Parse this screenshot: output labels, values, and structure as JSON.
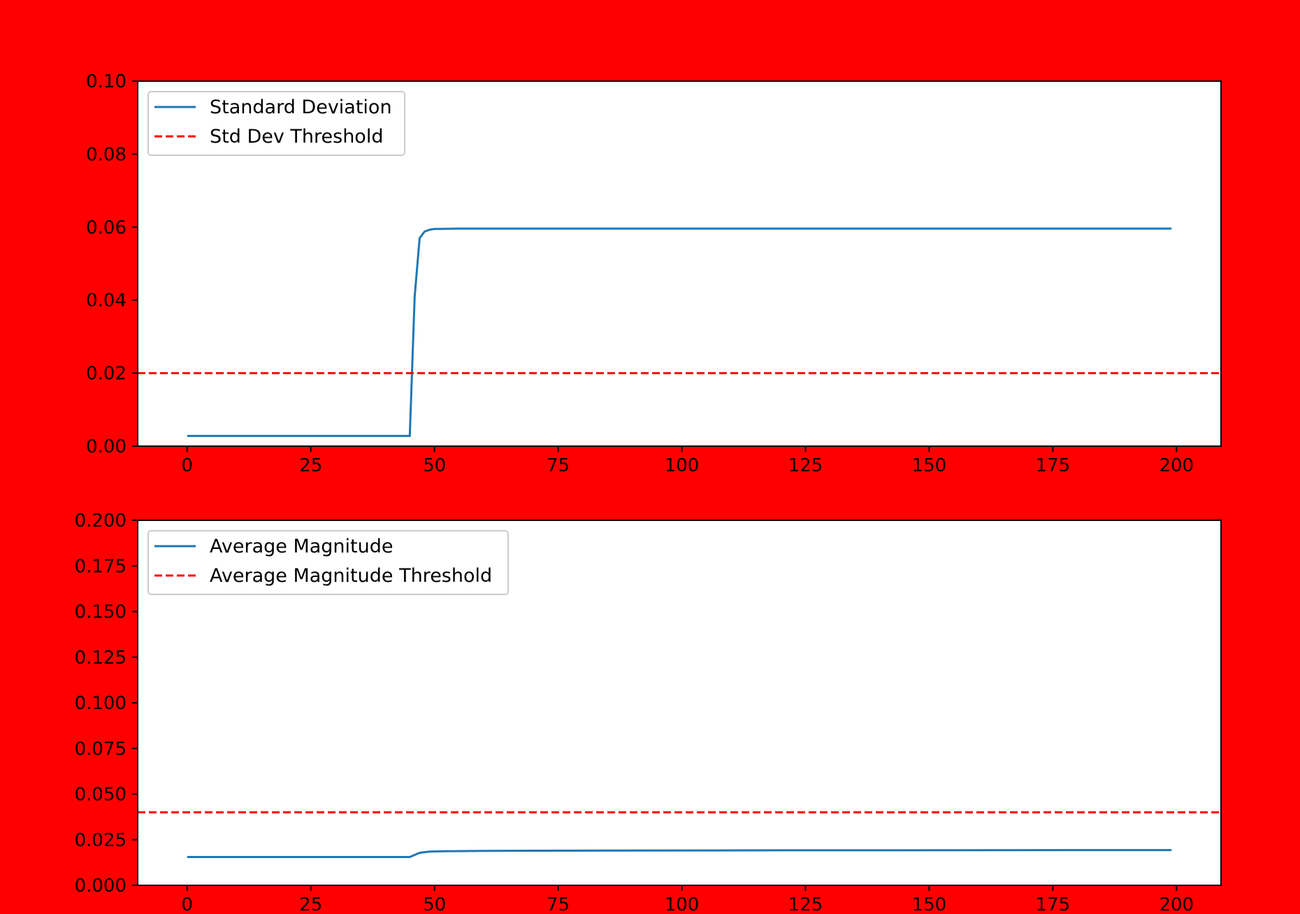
{
  "figure": {
    "background_color": "#ff0000",
    "plot_background_color": "#ffffff"
  },
  "chart_data": [
    {
      "type": "line",
      "title": "",
      "xlabel": "",
      "ylabel": "",
      "xlim": [
        -10,
        209
      ],
      "ylim": [
        0,
        0.1
      ],
      "xticks": [
        0,
        25,
        50,
        75,
        100,
        125,
        150,
        175,
        200
      ],
      "xtick_labels": [
        "0",
        "25",
        "50",
        "75",
        "100",
        "125",
        "150",
        "175",
        "200"
      ],
      "yticks": [
        0,
        0.02,
        0.04,
        0.06,
        0.08,
        0.1
      ],
      "ytick_labels": [
        "0.00",
        "0.02",
        "0.04",
        "0.06",
        "0.08",
        "0.10"
      ],
      "grid": false,
      "legend_position": "top-left",
      "series": [
        {
          "name": "Standard Deviation",
          "color": "#1f77b4",
          "style": "solid",
          "x": [
            0,
            45,
            46,
            47,
            48,
            49,
            50,
            55,
            60,
            199
          ],
          "y": [
            0.0028,
            0.0028,
            0.041,
            0.057,
            0.0588,
            0.0593,
            0.0595,
            0.0596,
            0.0596,
            0.0596
          ]
        },
        {
          "name": "Std Dev Threshold",
          "color": "#ff0000",
          "style": "dashed",
          "x": [
            -10,
            209
          ],
          "y": [
            0.02,
            0.02
          ]
        }
      ]
    },
    {
      "type": "line",
      "title": "",
      "xlabel": "",
      "ylabel": "",
      "xlim": [
        -10,
        209
      ],
      "ylim": [
        0,
        0.2
      ],
      "xticks": [
        0,
        25,
        50,
        75,
        100,
        125,
        150,
        175,
        200
      ],
      "xtick_labels": [
        "0",
        "25",
        "50",
        "75",
        "100",
        "125",
        "150",
        "175",
        "200"
      ],
      "yticks": [
        0,
        0.025,
        0.05,
        0.075,
        0.1,
        0.125,
        0.15,
        0.175,
        0.2
      ],
      "ytick_labels": [
        "0.000",
        "0.025",
        "0.050",
        "0.075",
        "0.100",
        "0.125",
        "0.150",
        "0.175",
        "0.200"
      ],
      "grid": false,
      "legend_position": "top-left",
      "series": [
        {
          "name": "Average Magnitude",
          "color": "#1f77b4",
          "style": "solid",
          "x": [
            0,
            45,
            47,
            49,
            52,
            60,
            80,
            120,
            199
          ],
          "y": [
            0.0155,
            0.0155,
            0.0178,
            0.0185,
            0.0187,
            0.0189,
            0.019,
            0.0192,
            0.0193
          ]
        },
        {
          "name": "Average Magnitude Threshold",
          "color": "#ff0000",
          "style": "dashed",
          "x": [
            -10,
            209
          ],
          "y": [
            0.04,
            0.04
          ]
        }
      ]
    }
  ]
}
